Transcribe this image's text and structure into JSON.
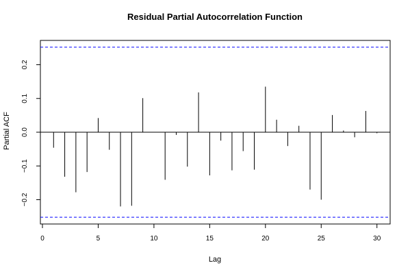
{
  "chart_data": {
    "type": "bar",
    "title": "Residual Partial Autocorrelation Function",
    "xlabel": "Lag",
    "ylabel": "Partial ACF",
    "xlim": [
      0,
      31
    ],
    "ylim": [
      -0.27,
      0.27
    ],
    "xticks": [
      0,
      5,
      10,
      15,
      20,
      25,
      30
    ],
    "yticks": [
      -0.2,
      -0.1,
      0.0,
      0.1,
      0.2
    ],
    "xtick_labels": [
      "0",
      "5",
      "10",
      "15",
      "20",
      "25",
      "30"
    ],
    "ytick_labels": [
      "−0.2",
      "−0.1",
      "0.0",
      "0.1",
      "0.2"
    ],
    "confidence_band": [
      -0.252,
      0.252
    ],
    "confidence_color": "#0000ff",
    "lags": [
      1,
      2,
      3,
      4,
      5,
      6,
      7,
      8,
      9,
      10,
      11,
      12,
      13,
      14,
      15,
      16,
      17,
      18,
      19,
      20,
      21,
      22,
      23,
      24,
      25,
      26,
      27,
      28,
      29,
      30
    ],
    "values": [
      -0.046,
      -0.132,
      -0.178,
      -0.118,
      0.042,
      -0.052,
      -0.22,
      -0.218,
      0.101,
      0.0,
      -0.141,
      -0.008,
      -0.102,
      0.118,
      -0.128,
      -0.025,
      -0.113,
      -0.056,
      -0.111,
      0.135,
      0.037,
      -0.041,
      0.019,
      -0.17,
      -0.2,
      0.051,
      0.005,
      -0.015,
      0.063,
      -0.003
    ]
  }
}
